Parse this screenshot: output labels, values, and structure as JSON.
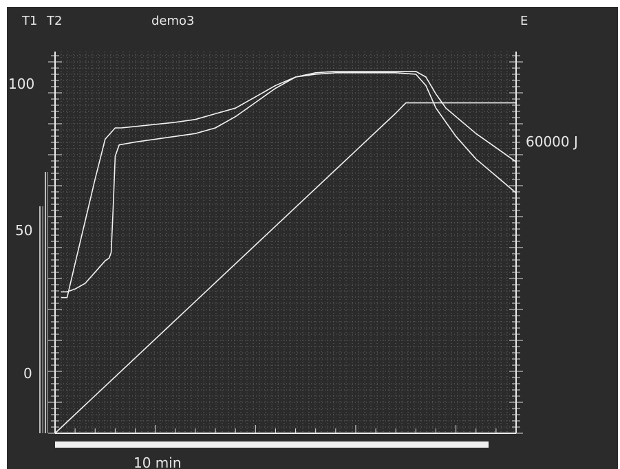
{
  "header": {
    "series_labels": [
      "T1",
      "T2"
    ],
    "title": "demo3",
    "right_label": "E"
  },
  "chart_data": {
    "type": "line",
    "title": "demo3",
    "legend": [
      "T1",
      "T2"
    ],
    "x_range_min": [
      0,
      23
    ],
    "y_left": {
      "ticks": [
        "100",
        "50",
        "0"
      ],
      "range": [
        -20,
        115
      ]
    },
    "y_right": {
      "label": "E",
      "tick": "60000 J",
      "range": [
        -36000,
        150000
      ]
    },
    "xlabel": "10 min",
    "grid": true,
    "series": [
      {
        "name": "T1",
        "axis": "left",
        "x": [
          0.3,
          0.6,
          1.0,
          1.5,
          2.0,
          2.5,
          3.0,
          3.3,
          4,
          6,
          7,
          8,
          9,
          10,
          11,
          12,
          13,
          14,
          15,
          16,
          17,
          18,
          18.5,
          19,
          19.5,
          20,
          21,
          22,
          23
        ],
        "y": [
          28,
          28,
          40,
          55,
          70,
          84,
          88,
          88,
          88.5,
          90,
          91,
          93,
          95,
          99,
          103,
          106,
          107.5,
          108,
          108,
          108,
          108,
          108,
          106,
          100,
          95,
          92,
          86,
          81,
          76
        ]
      },
      {
        "name": "T2",
        "axis": "left",
        "x": [
          0.3,
          0.6,
          1.0,
          1.5,
          2.0,
          2.5,
          2.7,
          2.8,
          2.9,
          3.0,
          3.2,
          4,
          6,
          7,
          8,
          9,
          10,
          11,
          12,
          13,
          14,
          15,
          16,
          17,
          18,
          18.5,
          19,
          20,
          21,
          22,
          23
        ],
        "y": [
          30,
          30,
          31,
          33,
          37,
          41,
          42,
          44,
          60,
          78,
          82,
          83,
          85,
          86,
          88,
          92,
          97,
          102,
          106,
          107,
          107.5,
          107.5,
          107.5,
          107.5,
          107,
          103,
          95,
          85,
          77,
          71,
          65
        ]
      },
      {
        "name": "E",
        "axis": "right",
        "x": [
          0,
          17,
          17.5,
          18,
          23
        ],
        "y": [
          -36000,
          120000,
          125000,
          125000,
          125000
        ]
      }
    ]
  }
}
